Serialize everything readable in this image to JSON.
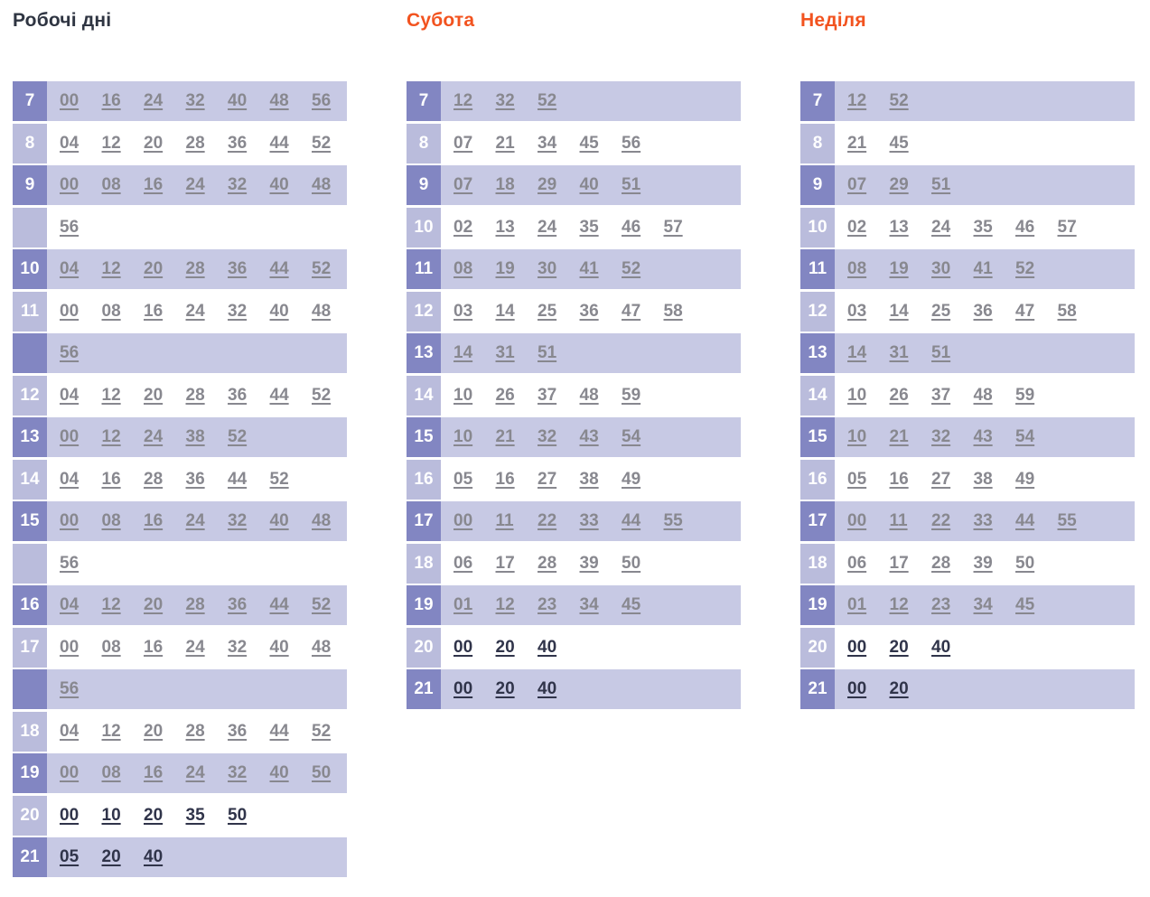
{
  "colors": {
    "accent_orange": "#f2531f",
    "title_dark": "#2f3542",
    "hour_dark_bg": "#8286c2",
    "hour_light_bg": "#babcdc",
    "row_purple_bg": "#c7c9e4",
    "minute_gray": "#88888f",
    "minute_dark": "#30344a",
    "hour_text": "#ffffff"
  },
  "columns": [
    {
      "id": "workdays",
      "title": "Робочі дні",
      "title_style": "dark",
      "rows": [
        {
          "hour": "7",
          "variant": "purple",
          "emphasis": false,
          "minutes": [
            "00",
            "16",
            "24",
            "32",
            "40",
            "48",
            "56"
          ]
        },
        {
          "hour": "8",
          "variant": "white",
          "emphasis": false,
          "minutes": [
            "04",
            "12",
            "20",
            "28",
            "36",
            "44",
            "52"
          ]
        },
        {
          "hour": "9",
          "variant": "purple",
          "emphasis": false,
          "minutes": [
            "00",
            "08",
            "16",
            "24",
            "32",
            "40",
            "48"
          ]
        },
        {
          "hour": "",
          "variant": "white",
          "emphasis": false,
          "minutes": [
            "56"
          ]
        },
        {
          "hour": "10",
          "variant": "purple",
          "emphasis": false,
          "minutes": [
            "04",
            "12",
            "20",
            "28",
            "36",
            "44",
            "52"
          ]
        },
        {
          "hour": "11",
          "variant": "white",
          "emphasis": false,
          "minutes": [
            "00",
            "08",
            "16",
            "24",
            "32",
            "40",
            "48"
          ]
        },
        {
          "hour": "",
          "variant": "purple",
          "emphasis": false,
          "minutes": [
            "56"
          ]
        },
        {
          "hour": "12",
          "variant": "white",
          "emphasis": false,
          "minutes": [
            "04",
            "12",
            "20",
            "28",
            "36",
            "44",
            "52"
          ]
        },
        {
          "hour": "13",
          "variant": "purple",
          "emphasis": false,
          "minutes": [
            "00",
            "12",
            "24",
            "38",
            "52"
          ]
        },
        {
          "hour": "14",
          "variant": "white",
          "emphasis": false,
          "minutes": [
            "04",
            "16",
            "28",
            "36",
            "44",
            "52"
          ]
        },
        {
          "hour": "15",
          "variant": "purple",
          "emphasis": false,
          "minutes": [
            "00",
            "08",
            "16",
            "24",
            "32",
            "40",
            "48"
          ]
        },
        {
          "hour": "",
          "variant": "white",
          "emphasis": false,
          "minutes": [
            "56"
          ]
        },
        {
          "hour": "16",
          "variant": "purple",
          "emphasis": false,
          "minutes": [
            "04",
            "12",
            "20",
            "28",
            "36",
            "44",
            "52"
          ]
        },
        {
          "hour": "17",
          "variant": "white",
          "emphasis": false,
          "minutes": [
            "00",
            "08",
            "16",
            "24",
            "32",
            "40",
            "48"
          ]
        },
        {
          "hour": "",
          "variant": "purple",
          "emphasis": false,
          "minutes": [
            "56"
          ]
        },
        {
          "hour": "18",
          "variant": "white",
          "emphasis": false,
          "minutes": [
            "04",
            "12",
            "20",
            "28",
            "36",
            "44",
            "52"
          ]
        },
        {
          "hour": "19",
          "variant": "purple",
          "emphasis": false,
          "minutes": [
            "00",
            "08",
            "16",
            "24",
            "32",
            "40",
            "50"
          ]
        },
        {
          "hour": "20",
          "variant": "white",
          "emphasis": true,
          "minutes": [
            "00",
            "10",
            "20",
            "35",
            "50"
          ]
        },
        {
          "hour": "21",
          "variant": "purple",
          "emphasis": true,
          "minutes": [
            "05",
            "20",
            "40"
          ]
        }
      ]
    },
    {
      "id": "saturday",
      "title": "Субота",
      "title_style": "orange",
      "rows": [
        {
          "hour": "7",
          "variant": "purple",
          "emphasis": false,
          "minutes": [
            "12",
            "32",
            "52"
          ]
        },
        {
          "hour": "8",
          "variant": "white",
          "emphasis": false,
          "minutes": [
            "07",
            "21",
            "34",
            "45",
            "56"
          ]
        },
        {
          "hour": "9",
          "variant": "purple",
          "emphasis": false,
          "minutes": [
            "07",
            "18",
            "29",
            "40",
            "51"
          ]
        },
        {
          "hour": "10",
          "variant": "white",
          "emphasis": false,
          "minutes": [
            "02",
            "13",
            "24",
            "35",
            "46",
            "57"
          ]
        },
        {
          "hour": "11",
          "variant": "purple",
          "emphasis": false,
          "minutes": [
            "08",
            "19",
            "30",
            "41",
            "52"
          ]
        },
        {
          "hour": "12",
          "variant": "white",
          "emphasis": false,
          "minutes": [
            "03",
            "14",
            "25",
            "36",
            "47",
            "58"
          ]
        },
        {
          "hour": "13",
          "variant": "purple",
          "emphasis": false,
          "minutes": [
            "14",
            "31",
            "51"
          ]
        },
        {
          "hour": "14",
          "variant": "white",
          "emphasis": false,
          "minutes": [
            "10",
            "26",
            "37",
            "48",
            "59"
          ]
        },
        {
          "hour": "15",
          "variant": "purple",
          "emphasis": false,
          "minutes": [
            "10",
            "21",
            "32",
            "43",
            "54"
          ]
        },
        {
          "hour": "16",
          "variant": "white",
          "emphasis": false,
          "minutes": [
            "05",
            "16",
            "27",
            "38",
            "49"
          ]
        },
        {
          "hour": "17",
          "variant": "purple",
          "emphasis": false,
          "minutes": [
            "00",
            "11",
            "22",
            "33",
            "44",
            "55"
          ]
        },
        {
          "hour": "18",
          "variant": "white",
          "emphasis": false,
          "minutes": [
            "06",
            "17",
            "28",
            "39",
            "50"
          ]
        },
        {
          "hour": "19",
          "variant": "purple",
          "emphasis": false,
          "minutes": [
            "01",
            "12",
            "23",
            "34",
            "45"
          ]
        },
        {
          "hour": "20",
          "variant": "white",
          "emphasis": true,
          "minutes": [
            "00",
            "20",
            "40"
          ]
        },
        {
          "hour": "21",
          "variant": "purple",
          "emphasis": true,
          "minutes": [
            "00",
            "20",
            "40"
          ]
        }
      ]
    },
    {
      "id": "sunday",
      "title": "Неділя",
      "title_style": "orange",
      "rows": [
        {
          "hour": "7",
          "variant": "purple",
          "emphasis": false,
          "minutes": [
            "12",
            "52"
          ]
        },
        {
          "hour": "8",
          "variant": "white",
          "emphasis": false,
          "minutes": [
            "21",
            "45"
          ]
        },
        {
          "hour": "9",
          "variant": "purple",
          "emphasis": false,
          "minutes": [
            "07",
            "29",
            "51"
          ]
        },
        {
          "hour": "10",
          "variant": "white",
          "emphasis": false,
          "minutes": [
            "02",
            "13",
            "24",
            "35",
            "46",
            "57"
          ]
        },
        {
          "hour": "11",
          "variant": "purple",
          "emphasis": false,
          "minutes": [
            "08",
            "19",
            "30",
            "41",
            "52"
          ]
        },
        {
          "hour": "12",
          "variant": "white",
          "emphasis": false,
          "minutes": [
            "03",
            "14",
            "25",
            "36",
            "47",
            "58"
          ]
        },
        {
          "hour": "13",
          "variant": "purple",
          "emphasis": false,
          "minutes": [
            "14",
            "31",
            "51"
          ]
        },
        {
          "hour": "14",
          "variant": "white",
          "emphasis": false,
          "minutes": [
            "10",
            "26",
            "37",
            "48",
            "59"
          ]
        },
        {
          "hour": "15",
          "variant": "purple",
          "emphasis": false,
          "minutes": [
            "10",
            "21",
            "32",
            "43",
            "54"
          ]
        },
        {
          "hour": "16",
          "variant": "white",
          "emphasis": false,
          "minutes": [
            "05",
            "16",
            "27",
            "38",
            "49"
          ]
        },
        {
          "hour": "17",
          "variant": "purple",
          "emphasis": false,
          "minutes": [
            "00",
            "11",
            "22",
            "33",
            "44",
            "55"
          ]
        },
        {
          "hour": "18",
          "variant": "white",
          "emphasis": false,
          "minutes": [
            "06",
            "17",
            "28",
            "39",
            "50"
          ]
        },
        {
          "hour": "19",
          "variant": "purple",
          "emphasis": false,
          "minutes": [
            "01",
            "12",
            "23",
            "34",
            "45"
          ]
        },
        {
          "hour": "20",
          "variant": "white",
          "emphasis": true,
          "minutes": [
            "00",
            "20",
            "40"
          ]
        },
        {
          "hour": "21",
          "variant": "purple",
          "emphasis": true,
          "minutes": [
            "00",
            "20"
          ]
        }
      ]
    }
  ]
}
